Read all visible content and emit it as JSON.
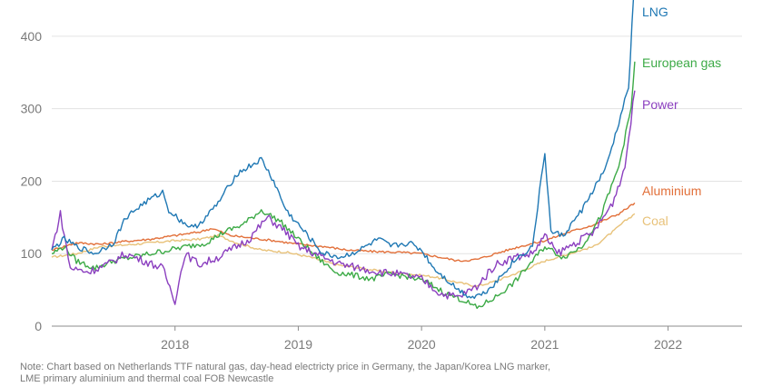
{
  "chart_data": {
    "type": "line",
    "title": "",
    "xlabel": "",
    "ylabel": "",
    "ylim": [
      0,
      450
    ],
    "xlim": [
      2017.0,
      2022.6
    ],
    "y_ticks": [
      0,
      100,
      200,
      300,
      400
    ],
    "x_ticks": [
      2018,
      2019,
      2020,
      2021,
      2022
    ],
    "grid": "horizontal",
    "legend": "direct labels at right end of lines",
    "series": [
      {
        "name": "LNG",
        "color": "#1f78b4",
        "points": [
          [
            2017.0,
            105
          ],
          [
            2017.1,
            120
          ],
          [
            2017.2,
            110
          ],
          [
            2017.35,
            100
          ],
          [
            2017.5,
            115
          ],
          [
            2017.6,
            150
          ],
          [
            2017.75,
            170
          ],
          [
            2017.9,
            185
          ],
          [
            2017.95,
            160
          ],
          [
            2018.05,
            145
          ],
          [
            2018.15,
            135
          ],
          [
            2018.25,
            150
          ],
          [
            2018.35,
            170
          ],
          [
            2018.5,
            210
          ],
          [
            2018.6,
            220
          ],
          [
            2018.7,
            230
          ],
          [
            2018.8,
            200
          ],
          [
            2018.9,
            160
          ],
          [
            2019.0,
            140
          ],
          [
            2019.1,
            120
          ],
          [
            2019.2,
            100
          ],
          [
            2019.35,
            95
          ],
          [
            2019.5,
            105
          ],
          [
            2019.65,
            120
          ],
          [
            2019.75,
            110
          ],
          [
            2019.9,
            115
          ],
          [
            2020.0,
            105
          ],
          [
            2020.1,
            80
          ],
          [
            2020.2,
            65
          ],
          [
            2020.3,
            50
          ],
          [
            2020.4,
            40
          ],
          [
            2020.5,
            45
          ],
          [
            2020.6,
            60
          ],
          [
            2020.75,
            90
          ],
          [
            2020.9,
            110
          ],
          [
            2021.0,
            240
          ],
          [
            2021.05,
            130
          ],
          [
            2021.15,
            125
          ],
          [
            2021.3,
            160
          ],
          [
            2021.4,
            190
          ],
          [
            2021.5,
            220
          ],
          [
            2021.6,
            280
          ],
          [
            2021.68,
            330
          ],
          [
            2021.72,
            455
          ]
        ]
      },
      {
        "name": "European gas",
        "color": "#3caa46",
        "points": [
          [
            2017.0,
            100
          ],
          [
            2017.1,
            110
          ],
          [
            2017.2,
            90
          ],
          [
            2017.35,
            80
          ],
          [
            2017.5,
            90
          ],
          [
            2017.65,
            95
          ],
          [
            2017.8,
            100
          ],
          [
            2017.95,
            105
          ],
          [
            2018.1,
            110
          ],
          [
            2018.25,
            115
          ],
          [
            2018.4,
            130
          ],
          [
            2018.55,
            140
          ],
          [
            2018.7,
            160
          ],
          [
            2018.85,
            145
          ],
          [
            2019.0,
            120
          ],
          [
            2019.15,
            95
          ],
          [
            2019.3,
            75
          ],
          [
            2019.45,
            70
          ],
          [
            2019.6,
            65
          ],
          [
            2019.75,
            72
          ],
          [
            2019.9,
            68
          ],
          [
            2020.05,
            60
          ],
          [
            2020.2,
            45
          ],
          [
            2020.35,
            35
          ],
          [
            2020.45,
            25
          ],
          [
            2020.6,
            40
          ],
          [
            2020.75,
            60
          ],
          [
            2020.9,
            90
          ],
          [
            2021.0,
            110
          ],
          [
            2021.15,
            95
          ],
          [
            2021.3,
            110
          ],
          [
            2021.45,
            150
          ],
          [
            2021.6,
            220
          ],
          [
            2021.7,
            300
          ],
          [
            2021.73,
            365
          ]
        ]
      },
      {
        "name": "Power",
        "color": "#8b3fbf",
        "points": [
          [
            2017.0,
            105
          ],
          [
            2017.07,
            155
          ],
          [
            2017.15,
            80
          ],
          [
            2017.3,
            75
          ],
          [
            2017.45,
            85
          ],
          [
            2017.6,
            100
          ],
          [
            2017.75,
            90
          ],
          [
            2017.9,
            80
          ],
          [
            2018.0,
            35
          ],
          [
            2018.08,
            100
          ],
          [
            2018.2,
            85
          ],
          [
            2018.35,
            95
          ],
          [
            2018.5,
            110
          ],
          [
            2018.6,
            120
          ],
          [
            2018.75,
            150
          ],
          [
            2018.9,
            130
          ],
          [
            2019.0,
            110
          ],
          [
            2019.2,
            95
          ],
          [
            2019.35,
            85
          ],
          [
            2019.5,
            80
          ],
          [
            2019.65,
            75
          ],
          [
            2019.8,
            72
          ],
          [
            2020.0,
            65
          ],
          [
            2020.15,
            45
          ],
          [
            2020.3,
            40
          ],
          [
            2020.45,
            55
          ],
          [
            2020.6,
            85
          ],
          [
            2020.75,
            95
          ],
          [
            2020.9,
            100
          ],
          [
            2021.0,
            125
          ],
          [
            2021.1,
            100
          ],
          [
            2021.25,
            115
          ],
          [
            2021.4,
            130
          ],
          [
            2021.55,
            170
          ],
          [
            2021.65,
            220
          ],
          [
            2021.73,
            325
          ]
        ]
      },
      {
        "name": "Aluminium",
        "color": "#e2703a",
        "points": [
          [
            2017.0,
            105
          ],
          [
            2017.2,
            115
          ],
          [
            2017.4,
            113
          ],
          [
            2017.6,
            117
          ],
          [
            2017.8,
            120
          ],
          [
            2018.0,
            125
          ],
          [
            2018.2,
            130
          ],
          [
            2018.3,
            135
          ],
          [
            2018.45,
            125
          ],
          [
            2018.6,
            122
          ],
          [
            2018.8,
            118
          ],
          [
            2019.0,
            113
          ],
          [
            2019.2,
            110
          ],
          [
            2019.4,
            105
          ],
          [
            2019.6,
            103
          ],
          [
            2019.8,
            102
          ],
          [
            2020.0,
            100
          ],
          [
            2020.15,
            95
          ],
          [
            2020.3,
            90
          ],
          [
            2020.45,
            92
          ],
          [
            2020.6,
            100
          ],
          [
            2020.8,
            110
          ],
          [
            2021.0,
            118
          ],
          [
            2021.2,
            130
          ],
          [
            2021.4,
            140
          ],
          [
            2021.6,
            155
          ],
          [
            2021.73,
            170
          ]
        ]
      },
      {
        "name": "Coal",
        "color": "#e8c27a",
        "points": [
          [
            2017.0,
            95
          ],
          [
            2017.2,
            100
          ],
          [
            2017.4,
            110
          ],
          [
            2017.6,
            112
          ],
          [
            2017.8,
            115
          ],
          [
            2018.0,
            118
          ],
          [
            2018.2,
            120
          ],
          [
            2018.35,
            125
          ],
          [
            2018.5,
            115
          ],
          [
            2018.7,
            105
          ],
          [
            2018.9,
            102
          ],
          [
            2019.1,
            95
          ],
          [
            2019.3,
            85
          ],
          [
            2019.5,
            80
          ],
          [
            2019.7,
            75
          ],
          [
            2019.9,
            72
          ],
          [
            2020.1,
            68
          ],
          [
            2020.3,
            60
          ],
          [
            2020.45,
            55
          ],
          [
            2020.6,
            62
          ],
          [
            2020.8,
            75
          ],
          [
            2021.0,
            90
          ],
          [
            2021.2,
            100
          ],
          [
            2021.4,
            110
          ],
          [
            2021.55,
            130
          ],
          [
            2021.65,
            145
          ],
          [
            2021.73,
            155
          ]
        ]
      }
    ],
    "y_tick_labels": [
      "0",
      "100",
      "200",
      "300",
      "400"
    ],
    "x_tick_labels": [
      "2018",
      "2019",
      "2020",
      "2021",
      "2022"
    ]
  },
  "note": {
    "line1": "Note: Chart based on Netherlands TTF natural gas, day-head electricty price in Germany, the Japan/Korea LNG marker,",
    "line2": "LME primary aluminium and thermal coal FOB Newcastle"
  }
}
